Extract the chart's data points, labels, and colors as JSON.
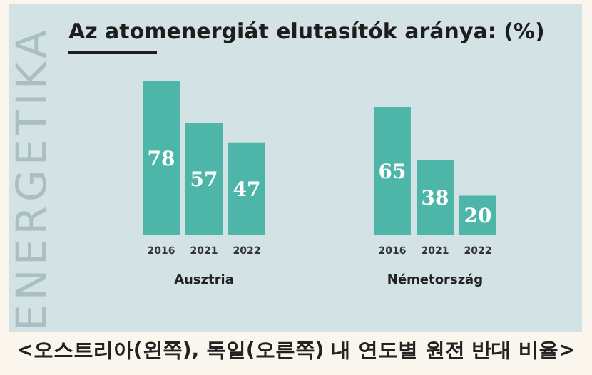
{
  "chart_data": [
    {
      "type": "bar",
      "title": "Az atomenergiát elutasítók aránya: (%)",
      "categories": [
        "2016",
        "2021",
        "2022"
      ],
      "values": [
        78,
        57,
        47
      ],
      "color": "#4db6a8",
      "data_labels": true,
      "xlabel": "Ausztria",
      "annotations": [
        "ENERGETIKA",
        "<오스트리아(왼쪽), 독일(오른쪽) 내 연도별 원전 반대 비율>"
      ]
    },
    {
      "type": "bar",
      "categories": [
        "2016",
        "2021",
        "2022"
      ],
      "values": [
        65,
        38,
        20
      ],
      "color": "#4db6a8",
      "data_labels": true,
      "xlabel": "Németország"
    }
  ]
}
